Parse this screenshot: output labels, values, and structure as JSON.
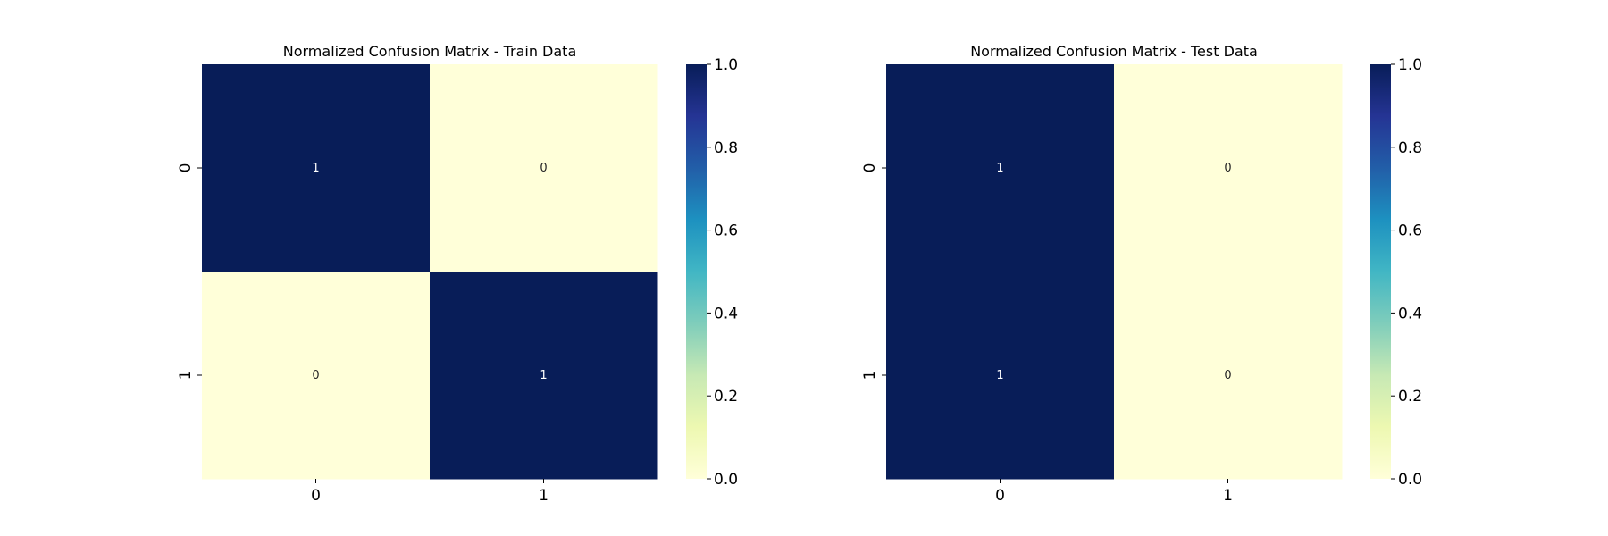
{
  "chart_data": [
    {
      "type": "heatmap",
      "title": "Normalized Confusion Matrix - Train Data",
      "x_categories": [
        "0",
        "1"
      ],
      "y_categories": [
        "0",
        "1"
      ],
      "values": [
        [
          1,
          0
        ],
        [
          0,
          1
        ]
      ],
      "cell_labels": [
        [
          "1",
          "0"
        ],
        [
          "0",
          "1"
        ]
      ],
      "xlabel": "",
      "ylabel": "",
      "colorbar": {
        "range": [
          0.0,
          1.0
        ],
        "ticks": [
          "0.0",
          "0.2",
          "0.4",
          "0.6",
          "0.8",
          "1.0"
        ],
        "colormap": "YlGnBu"
      }
    },
    {
      "type": "heatmap",
      "title": "Normalized Confusion Matrix - Test Data",
      "x_categories": [
        "0",
        "1"
      ],
      "y_categories": [
        "0",
        "1"
      ],
      "values": [
        [
          1,
          0
        ],
        [
          1,
          0
        ]
      ],
      "cell_labels": [
        [
          "1",
          "0"
        ],
        [
          "1",
          "0"
        ]
      ],
      "xlabel": "",
      "ylabel": "",
      "colorbar": {
        "range": [
          0.0,
          1.0
        ],
        "ticks": [
          "0.0",
          "0.2",
          "0.4",
          "0.6",
          "0.8",
          "1.0"
        ],
        "colormap": "YlGnBu"
      }
    }
  ],
  "colors": {
    "colormap_stops": [
      "#ffffd9",
      "#edf8b1",
      "#c7e9b4",
      "#7fcdbb",
      "#41b6c4",
      "#1d91c0",
      "#225ea8",
      "#253494",
      "#081d58"
    ]
  }
}
